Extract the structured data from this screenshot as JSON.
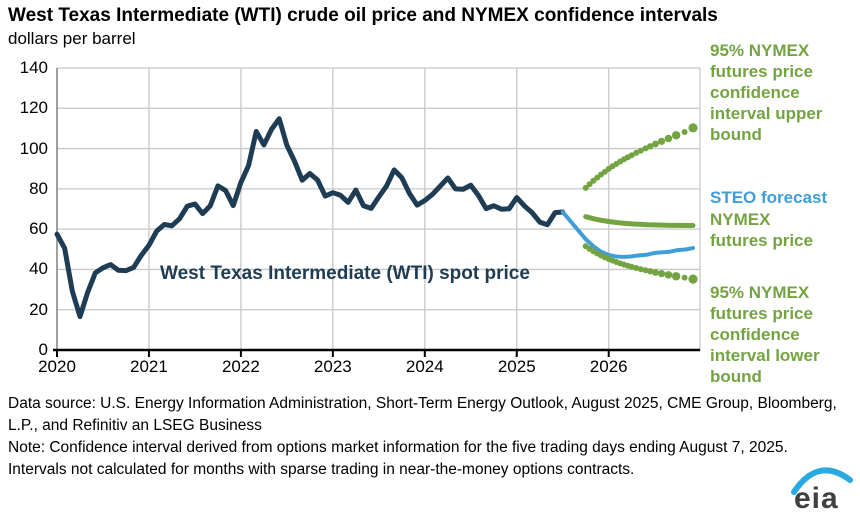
{
  "title": "West Texas Intermediate (WTI) crude oil price and NYMEX confidence intervals",
  "subtitle": "dollars per barrel",
  "colors": {
    "navy": "#1e3d54",
    "blue": "#3f9ed6",
    "green": "#74a442",
    "grid": "#c8c8c8",
    "axis": "#000000",
    "logo_swoosh": "#2aa9e0"
  },
  "annotations": {
    "upper_bound_label": "95% NYMEX futures price confidence interval upper bound",
    "steo_label": "STEO forecast",
    "futures_label_line1": "NYMEX",
    "futures_label_line2": "futures price",
    "lower_bound_label": "95% NYMEX futures price confidence interval lower bound",
    "spot_label_line1": "West Texas",
    "spot_label_line2": "Intermediate (WTI) spot price"
  },
  "footer": {
    "data_source": "Data source: U.S. Energy Information Administration, Short-Term Energy Outlook, August 2025, CME Group, Bloomberg, L.P., and Refinitiv an LSEG Business",
    "note": "Note: Confidence interval derived from options market information for the five trading days ending August 7, 2025. Intervals not calculated for months with sparse trading in near-the-money options contracts."
  },
  "logo": {
    "text": "eia"
  },
  "chart_data": {
    "type": "line",
    "title": "West Texas Intermediate (WTI) crude oil price and NYMEX confidence intervals",
    "ylabel": "dollars per barrel",
    "ylim": [
      0,
      140
    ],
    "yticks": [
      0,
      20,
      40,
      60,
      80,
      100,
      120,
      140
    ],
    "x_years": [
      2020,
      2021,
      2022,
      2023,
      2024,
      2025,
      2026
    ],
    "x_unit": "months since 2020-01",
    "grid": true,
    "legend_position": "right-annotations",
    "series": [
      {
        "name": "West Texas Intermediate (WTI) spot price",
        "color_key": "navy",
        "style": "solid",
        "width": 5,
        "start": "2020-01",
        "t0": 0,
        "monthly": [
          57.5,
          50.5,
          29.2,
          16.6,
          28.6,
          38.3,
          40.8,
          42.4,
          39.6,
          39.4,
          41.0,
          47.0,
          52.0,
          59.0,
          62.3,
          61.7,
          65.2,
          71.4,
          72.5,
          67.7,
          71.6,
          81.5,
          79.2,
          71.7,
          83.2,
          91.6,
          108.5,
          101.8,
          109.6,
          114.8,
          101.6,
          93.7,
          84.3,
          87.6,
          84.4,
          76.4,
          78.1,
          76.8,
          73.3,
          79.4,
          71.6,
          70.3,
          76.0,
          81.4,
          89.4,
          85.5,
          77.7,
          71.9,
          74.2,
          77.3,
          81.3,
          85.4,
          80.0,
          79.8,
          81.8,
          76.7,
          70.2,
          71.6,
          69.9,
          70.1,
          75.7,
          71.5,
          68.2,
          63.5,
          62.2,
          68.2,
          68.5
        ]
      },
      {
        "name": "STEO forecast",
        "color_key": "blue",
        "style": "solid",
        "width": 4,
        "start": "2025-07",
        "t0": 66,
        "monthly": [
          68.5,
          64.0,
          59.5,
          55.0,
          51.5,
          48.8,
          47.2,
          46.4,
          46.2,
          46.5,
          47.0,
          47.3,
          48.2,
          48.5,
          48.8,
          49.6,
          49.9,
          50.6
        ]
      },
      {
        "name": "NYMEX futures price",
        "color_key": "green",
        "style": "solid",
        "width": 5,
        "start": "2025-10",
        "t0": 69,
        "monthly": [
          66.2,
          65.2,
          64.4,
          63.8,
          63.3,
          62.9,
          62.6,
          62.4,
          62.2,
          62.1,
          62.0,
          61.9,
          61.9,
          61.8,
          61.8
        ]
      },
      {
        "name": "95% NYMEX futures price confidence interval upper bound",
        "color_key": "green",
        "style": "dotted",
        "points": [
          [
            69,
            80.5,
            3
          ],
          [
            69.5,
            82.3,
            3
          ],
          [
            70,
            84,
            3
          ],
          [
            70.5,
            85.6,
            3
          ],
          [
            71,
            87.1,
            3
          ],
          [
            71.5,
            88.5,
            3
          ],
          [
            72,
            89.9,
            3
          ],
          [
            72.5,
            91.2,
            3
          ],
          [
            73,
            92.4,
            3
          ],
          [
            73.5,
            93.6,
            3
          ],
          [
            74,
            94.7,
            3
          ],
          [
            74.5,
            95.7,
            3
          ],
          [
            75,
            96.7,
            3
          ],
          [
            75.6,
            97.9,
            3
          ],
          [
            76.2,
            99,
            3
          ],
          [
            76.8,
            100.1,
            3
          ],
          [
            77.4,
            101.1,
            3.2
          ],
          [
            78.1,
            102.3,
            3.4
          ],
          [
            78.9,
            103.6,
            3.6
          ],
          [
            79.8,
            105,
            3.8
          ],
          [
            80.8,
            106.6,
            4.2
          ],
          [
            81.9,
            108.2,
            3
          ],
          [
            83,
            110.3,
            4.6
          ]
        ]
      },
      {
        "name": "95% NYMEX futures price confidence interval lower bound",
        "color_key": "green",
        "style": "dotted",
        "points": [
          [
            69,
            51.5,
            3
          ],
          [
            69.5,
            50.2,
            3
          ],
          [
            70,
            49,
            3
          ],
          [
            70.5,
            47.9,
            3
          ],
          [
            71,
            46.9,
            3
          ],
          [
            71.5,
            46,
            3
          ],
          [
            72,
            45.2,
            3
          ],
          [
            72.5,
            44.4,
            3
          ],
          [
            73,
            43.7,
            3
          ],
          [
            73.5,
            43,
            3
          ],
          [
            74,
            42.4,
            3
          ],
          [
            74.5,
            41.8,
            3
          ],
          [
            75,
            41.3,
            3
          ],
          [
            75.6,
            40.7,
            3
          ],
          [
            76.2,
            40.1,
            3
          ],
          [
            76.8,
            39.6,
            3
          ],
          [
            77.4,
            39.1,
            3.2
          ],
          [
            78.1,
            38.5,
            3.4
          ],
          [
            78.9,
            37.9,
            3.6
          ],
          [
            79.8,
            37.3,
            3.8
          ],
          [
            80.8,
            36.6,
            4.2
          ],
          [
            81.9,
            35.9,
            3
          ],
          [
            83,
            35.2,
            4.6
          ]
        ]
      }
    ]
  }
}
